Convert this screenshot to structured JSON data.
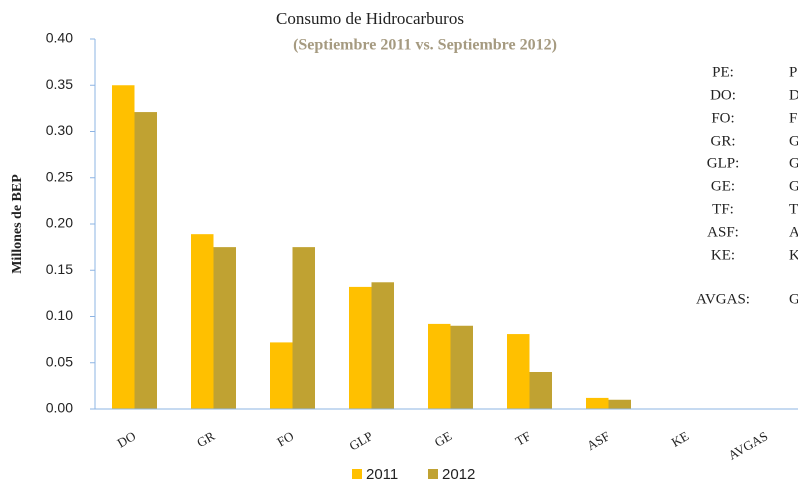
{
  "chart_data": {
    "type": "bar",
    "title": "Consumo de Hidrocarburos",
    "subtitle": "(Septiembre 2011 vs. Septiembre 2012)",
    "y_label": "Millones de BEP",
    "categories": [
      "DO",
      "GR",
      "FO",
      "GLP",
      "GE",
      "TF",
      "ASF",
      "KE",
      "AVGAS"
    ],
    "series": [
      {
        "name": "2011",
        "color": "#ffc000",
        "values": [
          0.35,
          0.189,
          0.072,
          0.132,
          0.092,
          0.081,
          0.012,
          0,
          0
        ]
      },
      {
        "name": "2012",
        "color": "#c0a232",
        "values": [
          0.321,
          0.175,
          0.175,
          0.137,
          0.09,
          0.04,
          0.01,
          0,
          0
        ]
      }
    ],
    "ylim": [
      0,
      0.4
    ],
    "yticks": [
      {
        "value": 0,
        "label": "0.00"
      },
      0.05,
      {
        "value": 0.1,
        "label": "0.10"
      },
      0.15,
      {
        "value": 0.2,
        "label": "0.20"
      },
      0.25,
      {
        "value": 0.3,
        "label": "0.30"
      },
      0.35,
      {
        "value": 0.4,
        "label": "0.40"
      }
    ],
    "legend_position": "bottom",
    "annotations": [
      {
        "abbr": "PE:",
        "text": "P"
      },
      {
        "abbr": "DO:",
        "text": "D"
      },
      {
        "abbr": "FO:",
        "text": "F"
      },
      {
        "abbr": "GR:",
        "text": "G"
      },
      {
        "abbr": "GLP:",
        "text": "G"
      },
      {
        "abbr": "GE:",
        "text": "G"
      },
      {
        "abbr": "TF:",
        "text": "T"
      },
      {
        "abbr": "ASF:",
        "text": "A"
      },
      {
        "abbr": "KE:",
        "text": "K"
      },
      {
        "abbr": "AVGAS:",
        "text": "G"
      }
    ]
  }
}
